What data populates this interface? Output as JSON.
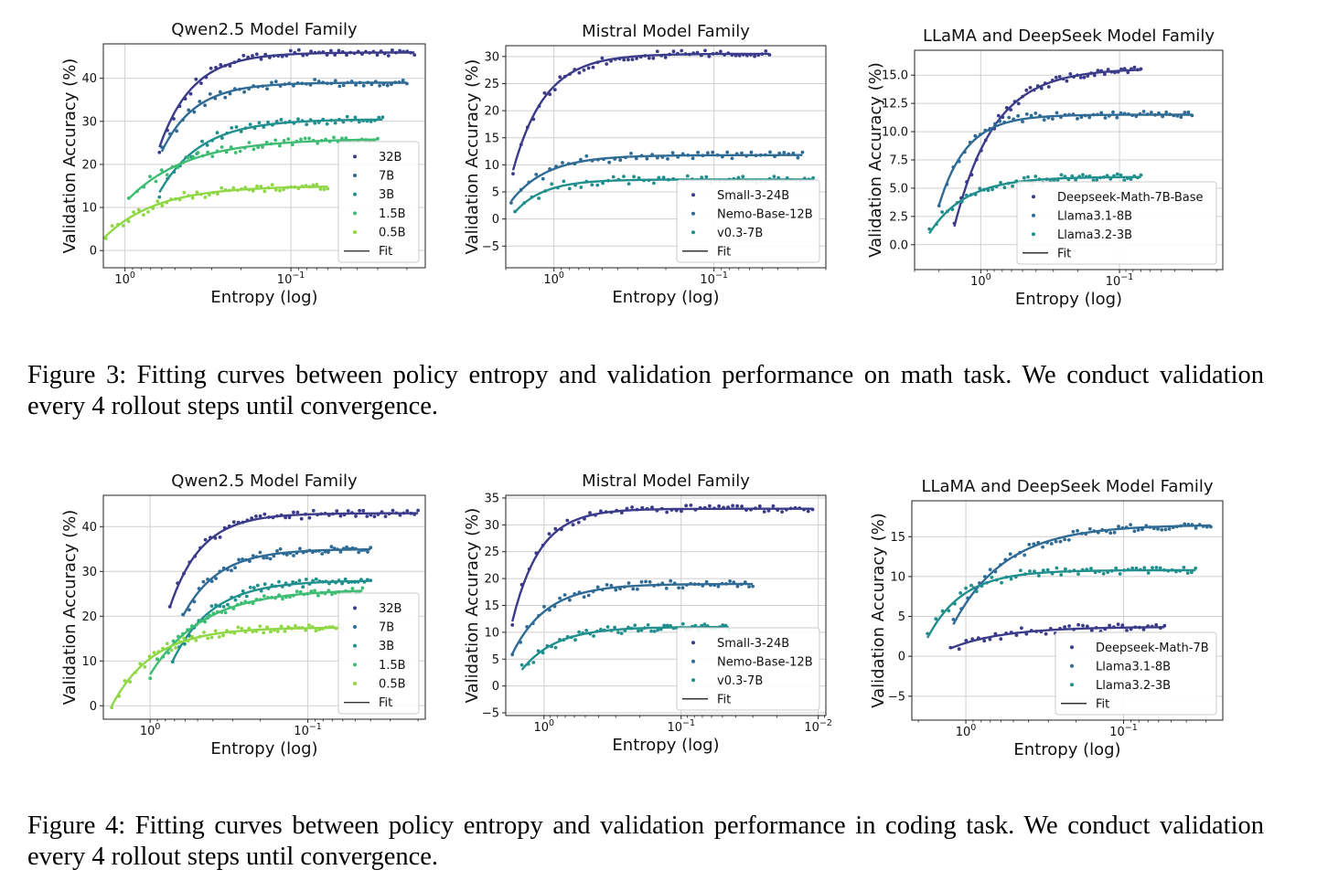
{
  "captions": {
    "fig3": "Figure 3: Fitting curves between policy entropy and validation performance on math task. We conduct validation every 4 rollout steps until convergence.",
    "fig4": "Figure 4: Fitting curves between policy entropy and validation performance in coding task. We conduct validation every 4 rollout steps until convergence."
  },
  "colors": {
    "dark_purple": "#3b3b8a",
    "blue": "#2f6b94",
    "teal": "#218f8d",
    "green": "#3fbc73",
    "light_green": "#8fd744",
    "fit_line": "#222222"
  },
  "chart_data": [
    {
      "type": "scatter",
      "title": "Qwen2.5 Model Family",
      "xlabel": "Entropy (log)",
      "ylabel": "Validation Accuracy (%)",
      "xscale": "log-reversed",
      "xlim": [
        1.35,
        0.0155
      ],
      "ylim": [
        -4,
        48
      ],
      "xticks": [
        {
          "value": 1,
          "label": "10^0"
        },
        {
          "value": 0.1,
          "label": "10^-1"
        }
      ],
      "yticks": [
        0,
        10,
        20,
        30,
        40
      ],
      "grid": true,
      "legend": {
        "position": "lower-right",
        "fit_label": "Fit"
      },
      "series": [
        {
          "name": "32B",
          "color": "#3b3b8a",
          "fit": {
            "a": 46,
            "b": 22,
            "k": 5,
            "x0": 0.62
          },
          "x_range": [
            0.62,
            0.018
          ],
          "n": 60
        },
        {
          "name": "7B",
          "color": "#2f6b94",
          "fit": {
            "a": 39,
            "b": 16,
            "k": 5,
            "x0": 0.6
          },
          "x_range": [
            0.6,
            0.02
          ],
          "n": 55
        },
        {
          "name": "3B",
          "color": "#218f8d",
          "fit": {
            "a": 30.5,
            "b": 17,
            "k": 4,
            "x0": 0.62
          },
          "x_range": [
            0.62,
            0.028
          ],
          "n": 50
        },
        {
          "name": "1.5B",
          "color": "#3fbc73",
          "fit": {
            "a": 26,
            "b": 14,
            "k": 2.8,
            "x0": 0.95
          },
          "x_range": [
            0.95,
            0.03
          ],
          "n": 55
        },
        {
          "name": "0.5B",
          "color": "#8fd744",
          "fit": {
            "a": 15,
            "b": 13.5,
            "k": 3.2,
            "x0": 1.45
          },
          "x_range": [
            1.45,
            0.06
          ],
          "n": 55
        }
      ]
    },
    {
      "type": "scatter",
      "title": "Mistral Model Family",
      "xlabel": "Entropy (log)",
      "ylabel": "Validation Accuracy (%)",
      "xscale": "log-reversed",
      "xlim": [
        2.0,
        0.02
      ],
      "ylim": [
        -9,
        32
      ],
      "xticks": [
        {
          "value": 1,
          "label": "10^0"
        },
        {
          "value": 0.1,
          "label": "10^-1"
        }
      ],
      "yticks": [
        -5,
        0,
        5,
        10,
        15,
        20,
        25,
        30
      ],
      "grid": true,
      "legend": {
        "position": "lower-right",
        "fit_label": "Fit"
      },
      "series": [
        {
          "name": "Small-3-24B",
          "color": "#3b3b8a",
          "fit": {
            "a": 30.5,
            "b": 21.5,
            "k": 5,
            "x0": 1.8
          },
          "x_range": [
            1.8,
            0.045
          ],
          "n": 60
        },
        {
          "name": "Nemo-Base-12B",
          "color": "#2f6b94",
          "fit": {
            "a": 11.8,
            "b": 8.5,
            "k": 4.5,
            "x0": 1.85
          },
          "x_range": [
            1.85,
            0.028
          ],
          "n": 55
        },
        {
          "name": "v0.3-7B",
          "color": "#218f8d",
          "fit": {
            "a": 7.3,
            "b": 6,
            "k": 5.5,
            "x0": 1.75
          },
          "x_range": [
            1.75,
            0.024
          ],
          "n": 60
        }
      ]
    },
    {
      "type": "scatter",
      "title": "LLaMA and DeepSeek Model Family",
      "xlabel": "Entropy (log)",
      "ylabel": "Validation Accuracy (%)",
      "xscale": "log-reversed",
      "xlim": [
        3.0,
        0.018
      ],
      "ylim": [
        -2.2,
        17.2
      ],
      "xticks": [
        {
          "value": 1,
          "label": "10^0"
        },
        {
          "value": 0.1,
          "label": "10^-1"
        }
      ],
      "yticks": [
        0.0,
        2.5,
        5.0,
        7.5,
        10.0,
        12.5,
        15.0
      ],
      "grid": true,
      "legend": {
        "position": "lower-right",
        "fit_label": "Fit"
      },
      "series": [
        {
          "name": "Deepseek-Math-7B-Base",
          "color": "#3b3b8a",
          "fit": {
            "a": 15.6,
            "b": 14,
            "k": 3.5,
            "x0": 1.55
          },
          "x_range": [
            1.55,
            0.07
          ],
          "n": 50
        },
        {
          "name": "Llama3.1-8B",
          "color": "#2f6b94",
          "fit": {
            "a": 11.5,
            "b": 8,
            "k": 5,
            "x0": 2.0
          },
          "x_range": [
            2.0,
            0.03
          ],
          "n": 60
        },
        {
          "name": "Llama3.2-3B",
          "color": "#218f8d",
          "fit": {
            "a": 6,
            "b": 5,
            "k": 3.8,
            "x0": 2.35
          },
          "x_range": [
            2.35,
            0.07
          ],
          "n": 55
        }
      ]
    },
    {
      "type": "scatter",
      "title": "Qwen2.5 Model Family",
      "xlabel": "Entropy (log)",
      "ylabel": "Validation Accuracy (%)",
      "xscale": "log-reversed",
      "xlim": [
        1.98,
        0.018
      ],
      "ylim": [
        -3,
        47
      ],
      "xticks": [
        {
          "value": 1,
          "label": "10^0"
        },
        {
          "value": 0.1,
          "label": "10^-1"
        }
      ],
      "yticks": [
        0,
        10,
        20,
        30,
        40
      ],
      "grid": true,
      "legend": {
        "position": "lower-right",
        "fit_label": "Fit"
      },
      "series": [
        {
          "name": "32B",
          "color": "#3b3b8a",
          "fit": {
            "a": 43,
            "b": 21,
            "k": 5,
            "x0": 0.75
          },
          "x_range": [
            0.75,
            0.02
          ],
          "n": 60
        },
        {
          "name": "7B",
          "color": "#2f6b94",
          "fit": {
            "a": 35,
            "b": 15,
            "k": 4.5,
            "x0": 0.62
          },
          "x_range": [
            0.62,
            0.04
          ],
          "n": 55
        },
        {
          "name": "3B",
          "color": "#218f8d",
          "fit": {
            "a": 28,
            "b": 18,
            "k": 4,
            "x0": 0.72
          },
          "x_range": [
            0.72,
            0.04
          ],
          "n": 55
        },
        {
          "name": "1.5B",
          "color": "#3fbc73",
          "fit": {
            "a": 26,
            "b": 19,
            "k": 3,
            "x0": 1.0
          },
          "x_range": [
            1.0,
            0.045
          ],
          "n": 55
        },
        {
          "name": "0.5B",
          "color": "#8fd744",
          "fit": {
            "a": 17.5,
            "b": 17.5,
            "k": 3.8,
            "x0": 1.75
          },
          "x_range": [
            1.75,
            0.06
          ],
          "n": 60
        }
      ]
    },
    {
      "type": "scatter",
      "title": "Mistral Model Family",
      "xlabel": "Entropy (log)",
      "ylabel": "Validation Accuracy (%)",
      "xscale": "log-reversed",
      "xlim": [
        1.9,
        0.0088
      ],
      "ylim": [
        -5.5,
        35.5
      ],
      "xticks": [
        {
          "value": 1,
          "label": "10^0"
        },
        {
          "value": 0.1,
          "label": "10^-1"
        },
        {
          "value": 0.01,
          "label": "10^-2"
        }
      ],
      "yticks": [
        -5,
        0,
        5,
        10,
        15,
        20,
        25,
        30,
        35
      ],
      "grid": true,
      "legend": {
        "position": "lower-right",
        "fit_label": "Fit"
      },
      "series": [
        {
          "name": "Small-3-24B",
          "color": "#3b3b8a",
          "fit": {
            "a": 33,
            "b": 21,
            "k": 5,
            "x0": 1.7
          },
          "x_range": [
            1.7,
            0.011
          ],
          "n": 60
        },
        {
          "name": "Nemo-Base-12B",
          "color": "#2f6b94",
          "fit": {
            "a": 19,
            "b": 13,
            "k": 4,
            "x0": 1.7
          },
          "x_range": [
            1.7,
            0.03
          ],
          "n": 55
        },
        {
          "name": "v0.3-7B",
          "color": "#218f8d",
          "fit": {
            "a": 11,
            "b": 8,
            "k": 4,
            "x0": 1.45
          },
          "x_range": [
            1.45,
            0.045
          ],
          "n": 60
        }
      ]
    },
    {
      "type": "scatter",
      "title": "LLaMA and DeepSeek Model Family",
      "xlabel": "Entropy (log)",
      "ylabel": "Validation Accuracy (%)",
      "xscale": "log-reversed",
      "xlim": [
        2.2,
        0.0235
      ],
      "ylim": [
        -8,
        19.5
      ],
      "xticks": [
        {
          "value": 1,
          "label": "10^0"
        },
        {
          "value": 0.1,
          "label": "10^-1"
        }
      ],
      "yticks": [
        -5,
        0,
        5,
        10,
        15
      ],
      "grid": true,
      "legend": {
        "position": "lower-right",
        "fit_label": "Fit"
      },
      "series": [
        {
          "name": "Deepseek-Math-7B",
          "color": "#3b3b8a",
          "fit": {
            "a": 3.7,
            "b": 2.7,
            "k": 3,
            "x0": 1.25
          },
          "x_range": [
            1.25,
            0.055
          ],
          "n": 45
        },
        {
          "name": "Llama3.1-8B",
          "color": "#2f6b94",
          "fit": {
            "a": 16.5,
            "b": 12.5,
            "k": 3,
            "x0": 1.2
          },
          "x_range": [
            1.2,
            0.028
          ],
          "n": 60
        },
        {
          "name": "Llama3.2-3B",
          "color": "#218f8d",
          "fit": {
            "a": 10.8,
            "b": 8.5,
            "k": 4.5,
            "x0": 1.75
          },
          "x_range": [
            1.75,
            0.035
          ],
          "n": 60
        }
      ]
    }
  ]
}
